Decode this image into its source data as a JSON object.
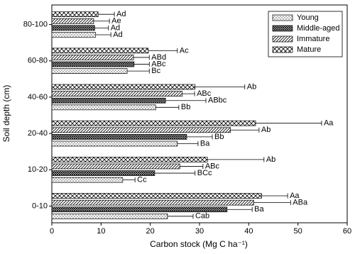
{
  "chart_data": {
    "type": "bar",
    "orientation": "horizontal",
    "x_label": "Carbon stock (Mg C ha⁻¹)",
    "y_label": "Soil depth (cm)",
    "categories": [
      "0-10",
      "10-20",
      "20-40",
      "40-60",
      "60-80",
      "80-100"
    ],
    "xlim": [
      0,
      60
    ],
    "xticks": [
      0,
      10,
      20,
      30,
      40,
      50,
      60
    ],
    "legend": "upper right",
    "series": [
      {
        "name": "Young",
        "color": "#000000",
        "values": [
          23.5,
          14.4,
          25.5,
          21.1,
          15.3,
          8.9
        ],
        "errors": [
          5.2,
          2.5,
          4.2,
          4.7,
          4.5,
          3.1
        ],
        "labels": [
          "Cab",
          "Cc",
          "Ba",
          "Bb",
          "Bc",
          "Ad"
        ]
      },
      {
        "name": "Middle-aged",
        "color": "#000000",
        "values": [
          35.6,
          20.9,
          27.4,
          23.1,
          16.7,
          8.7
        ],
        "errors": [
          5.1,
          8.2,
          5.2,
          8.2,
          3.1,
          2.8
        ],
        "labels": [
          "Ba",
          "BCc",
          "Bb",
          "ABbc",
          "ABc",
          "Ad"
        ]
      },
      {
        "name": "Immature",
        "color": "#000000",
        "values": [
          41.0,
          26.0,
          36.3,
          26.5,
          16.6,
          8.5
        ],
        "errors": [
          7.5,
          4.7,
          5.8,
          2.5,
          3.2,
          3.2
        ],
        "labels": [
          "ABa",
          "ABc",
          "Ab",
          "ABc",
          "ABd",
          "Ae"
        ]
      },
      {
        "name": "Mature",
        "color": "#000000",
        "values": [
          42.6,
          31.6,
          41.4,
          29.1,
          19.6,
          9.4
        ],
        "errors": [
          5.3,
          11.5,
          13.4,
          10.1,
          5.9,
          3.3
        ],
        "labels": [
          "Aa",
          "Ab",
          "Aa",
          "Ab",
          "Ac",
          "Ad"
        ]
      }
    ]
  }
}
